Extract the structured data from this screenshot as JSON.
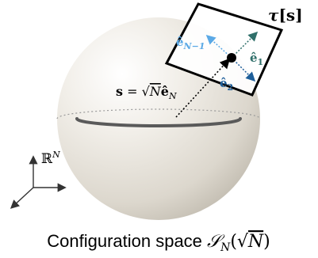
{
  "figure": {
    "caption_prefix": "Configuration space ",
    "caption_math": "𝒮",
    "caption_sub": "N",
    "caption_arg_open": "(√",
    "caption_arg_var": "N",
    "caption_arg_close": ")",
    "tangent_label_tau": "τ",
    "tangent_label_arg": "[s]",
    "position_label_s": "s",
    "position_label_eq": " = √",
    "position_label_N": "N",
    "position_label_e": "ê",
    "position_label_sub": "N",
    "basis_e1": "ê",
    "basis_e1_sub": "1",
    "basis_e2": "ê",
    "basis_e2_sub": "2",
    "basis_eN1": "ê",
    "basis_eN1_sub": "N−1",
    "ambient_space": "ℝ",
    "ambient_sup": "N"
  },
  "colors": {
    "sphere_light": "#f3f1ec",
    "sphere_dark": "#c9c4b8",
    "equator": "#5a5a5a",
    "e1": "#2f6f6a",
    "e2": "#1f5f9a",
    "eN1": "#5ba9e6",
    "ink": "#000000"
  }
}
